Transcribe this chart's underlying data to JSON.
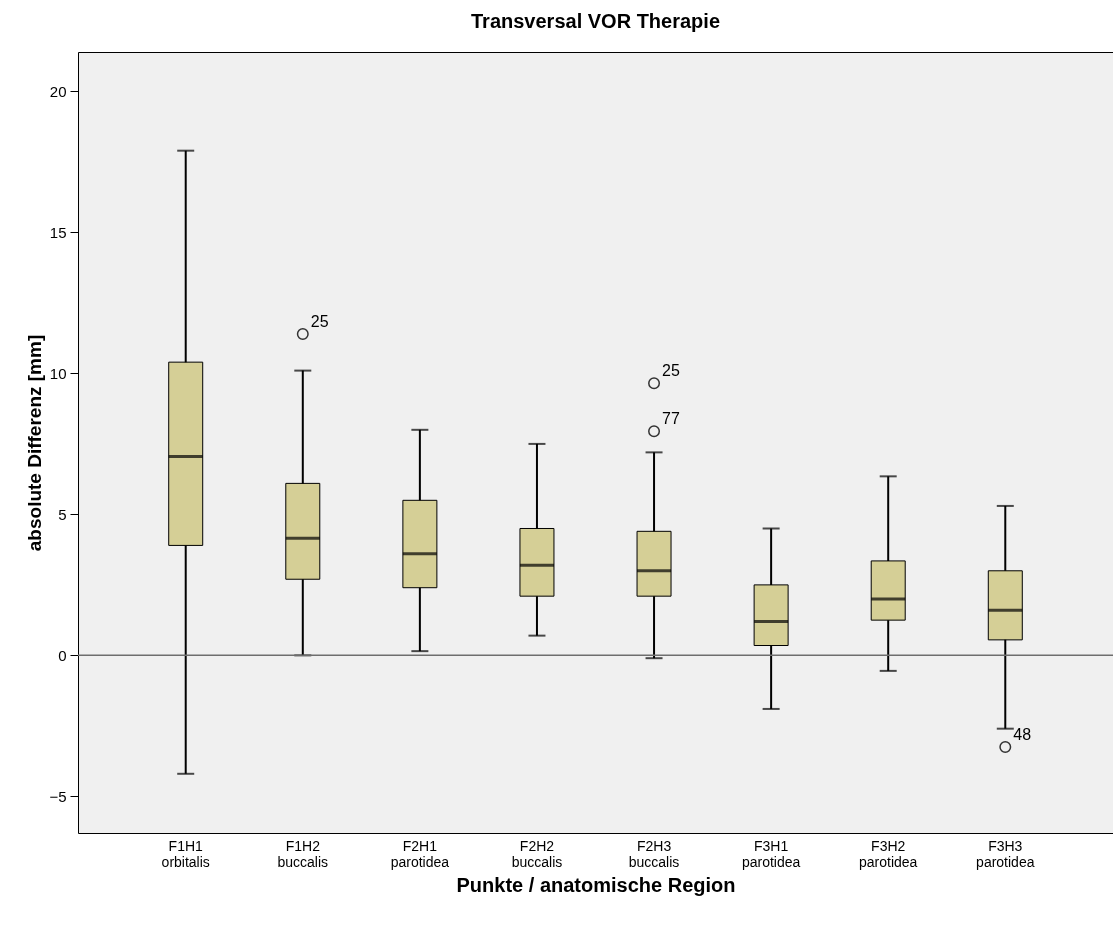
{
  "chart_data": {
    "type": "box",
    "title": "Transversal VOR Therapie",
    "xlabel": "Punkte / anatomische Region",
    "ylabel": "absolute Differenz [mm]",
    "categories": [
      "F1H1\norbitalis",
      "F1H2\nbuccalis",
      "F2H1\nparotidea",
      "F2H2\nbuccalis",
      "F2H3\nbuccalis",
      "F3H1\nparotidea",
      "F3H2\nparotidea",
      "F3H3\nparotidea"
    ],
    "series": [
      {
        "color": "#d5cf96",
        "boxes": [
          {
            "low": -4.2,
            "q1": 3.9,
            "median": 7.05,
            "q3": 10.4,
            "high": 17.9
          },
          {
            "low": 0.0,
            "q1": 2.7,
            "median": 4.15,
            "q3": 6.1,
            "high": 10.1,
            "outliers": [
              11.4
            ]
          },
          {
            "low": 0.15,
            "q1": 2.4,
            "median": 3.6,
            "q3": 5.5,
            "high": 8.0
          },
          {
            "low": 0.7,
            "q1": 2.1,
            "median": 3.2,
            "q3": 4.5,
            "high": 7.5
          },
          {
            "low": -0.1,
            "q1": 2.1,
            "median": 3.0,
            "q3": 4.4,
            "high": 7.2,
            "outliers": [
              9.65,
              7.95
            ]
          },
          {
            "low": -1.9,
            "q1": 0.35,
            "median": 1.2,
            "q3": 2.5,
            "high": 4.5
          },
          {
            "low": -0.55,
            "q1": 1.25,
            "median": 2.0,
            "q3": 3.35,
            "high": 6.35
          },
          {
            "low": -2.6,
            "q1": 0.55,
            "median": 1.6,
            "q3": 3.0,
            "high": 5.3,
            "outliers": [
              -3.25
            ]
          }
        ]
      }
    ],
    "ylim": [
      -6.3,
      21.4
    ],
    "yticks": [
      -5,
      0,
      5,
      10,
      15,
      20
    ],
    "grid": false,
    "marker": "circle",
    "ref_lines": [
      {
        "axis": "y",
        "value": 0,
        "color": "#6e6e6e"
      }
    ],
    "annotations": [
      "25",
      "25",
      "77",
      "48"
    ]
  }
}
